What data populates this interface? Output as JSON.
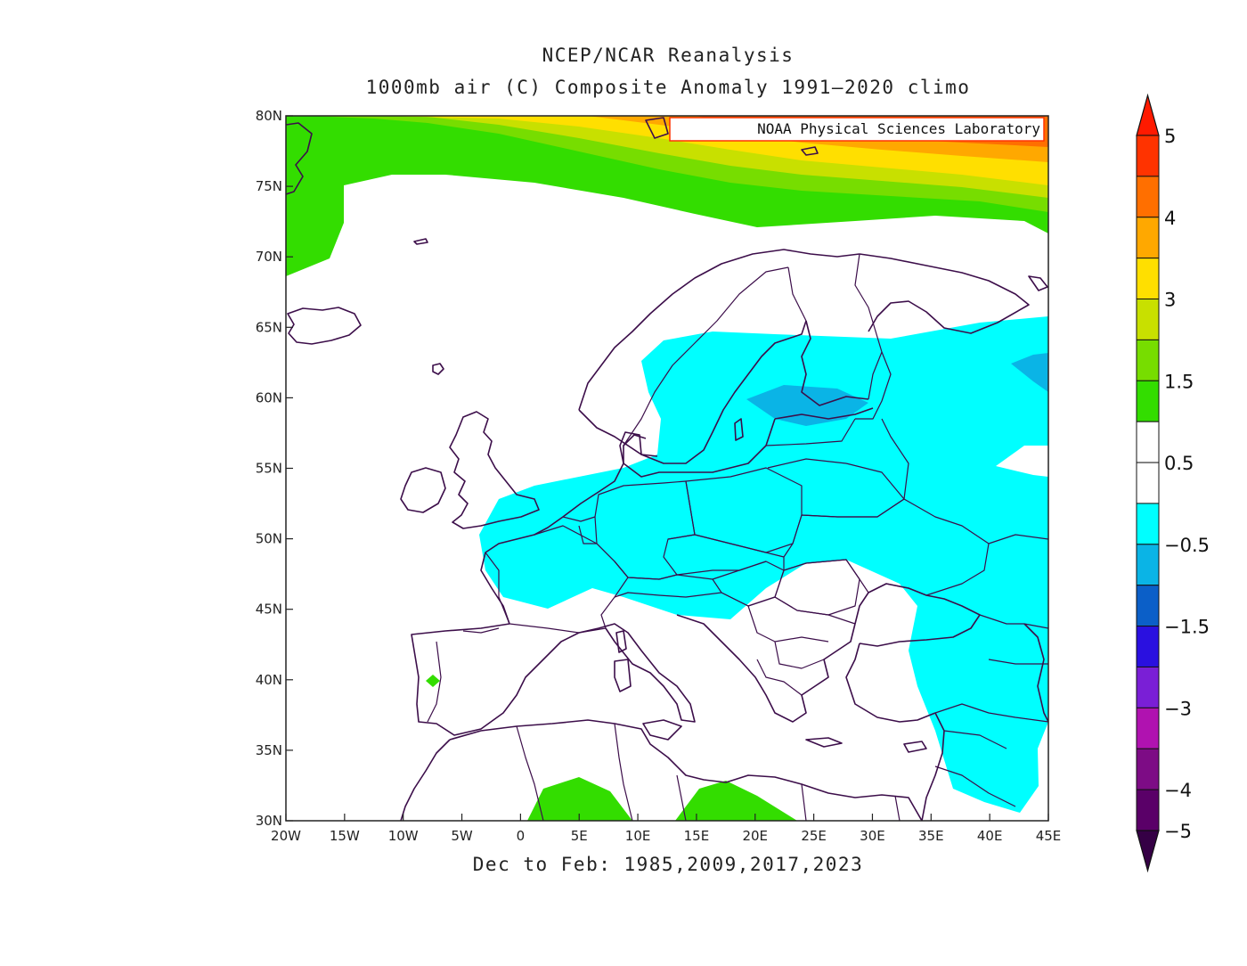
{
  "title": {
    "line1": "NCEP/NCAR Reanalysis",
    "line2": "1000mb air (C) Composite Anomaly 1991–2020 climo"
  },
  "credit": "NOAA Physical Sciences Laboratory",
  "footer": "Dec to Feb: 1985,2009,2017,2023",
  "map": {
    "lon_range": [
      -20,
      45
    ],
    "lat_range": [
      30,
      80
    ],
    "lon_ticks": [
      {
        "value": -20,
        "label": "20W"
      },
      {
        "value": -15,
        "label": "15W"
      },
      {
        "value": -10,
        "label": "10W"
      },
      {
        "value": -5,
        "label": "5W"
      },
      {
        "value": 0,
        "label": "0"
      },
      {
        "value": 5,
        "label": "5E"
      },
      {
        "value": 10,
        "label": "10E"
      },
      {
        "value": 15,
        "label": "15E"
      },
      {
        "value": 20,
        "label": "20E"
      },
      {
        "value": 25,
        "label": "25E"
      },
      {
        "value": 30,
        "label": "30E"
      },
      {
        "value": 35,
        "label": "35E"
      },
      {
        "value": 40,
        "label": "40E"
      },
      {
        "value": 45,
        "label": "45E"
      }
    ],
    "lat_ticks": [
      {
        "value": 30,
        "label": "30N"
      },
      {
        "value": 35,
        "label": "35N"
      },
      {
        "value": 40,
        "label": "40N"
      },
      {
        "value": 45,
        "label": "45N"
      },
      {
        "value": 50,
        "label": "50N"
      },
      {
        "value": 55,
        "label": "55N"
      },
      {
        "value": 60,
        "label": "60N"
      },
      {
        "value": 65,
        "label": "65N"
      },
      {
        "value": 70,
        "label": "70N"
      },
      {
        "value": 75,
        "label": "75N"
      },
      {
        "value": 80,
        "label": "80N"
      }
    ]
  },
  "colorbar": {
    "colors": [
      "#5a0068",
      "#7d0c85",
      "#b012b0",
      "#7a1fd6",
      "#2a10e0",
      "#0b5fc8",
      "#0ab4e6",
      "#00ffff",
      "#ffffff",
      "#ffffff",
      "#33dd00",
      "#77dd00",
      "#c8e000",
      "#ffdf00",
      "#ffa800",
      "#ff6f00",
      "#ff3300"
    ],
    "low_arrow_color": "#350045",
    "high_arrow_color": "#ff1a00",
    "labels": [
      "5",
      "4",
      "3",
      "1.5",
      "0.5",
      "−0.5",
      "−1.5",
      "−3",
      "−4",
      "−5"
    ]
  },
  "anomaly_colors": {
    "cold_light": "#00ffff",
    "cold_medium": "#0ab4e6",
    "warm_green": "#33dd00",
    "warm_lime": "#77dd00",
    "warm_yellowgreen": "#c8e000",
    "warm_yellow": "#ffdf00",
    "warm_orange": "#ffa800",
    "warm_darkorange": "#ff6f00",
    "warm_red": "#ff3300",
    "coastline": "#3c0e4a"
  }
}
